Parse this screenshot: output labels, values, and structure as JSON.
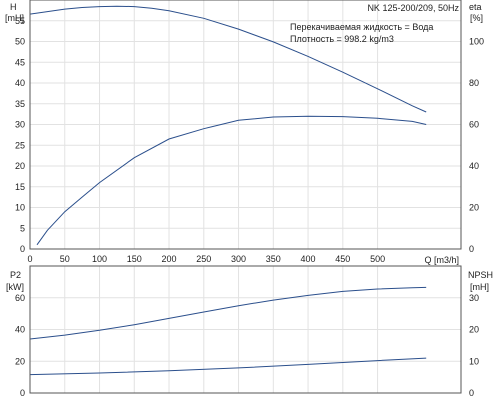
{
  "chart_data": [
    {
      "type": "line",
      "panel": "top",
      "title": "NK 125-200/209, 50Hz",
      "annotations": [
        "Перекачиваемая жидкость = Вода",
        "Плотность = 998.2 kg/m3"
      ],
      "xlabel": "Q [m3/h]",
      "x_ticks": [
        "0",
        "50",
        "100",
        "150",
        "200",
        "250",
        "300",
        "350",
        "400",
        "450",
        "500"
      ],
      "xlim": [
        0,
        620
      ],
      "ylabel_left": [
        "H",
        "[mH]"
      ],
      "ylim_left": [
        0,
        60
      ],
      "y_ticks_left": [
        "0",
        "5",
        "10",
        "15",
        "20",
        "25",
        "30",
        "35",
        "40",
        "45",
        "50",
        "55"
      ],
      "ylabel_right": [
        "eta",
        "[%]"
      ],
      "ylim_right": [
        0,
        120
      ],
      "y_ticks_right": [
        "0",
        "20",
        "40",
        "60",
        "80",
        "100"
      ],
      "grid": true,
      "series": [
        {
          "axis": "left",
          "color": "#2b4f8c",
          "x": [
            0,
            25,
            50,
            75,
            100,
            125,
            150,
            175,
            200,
            250,
            300,
            350,
            400,
            450,
            500,
            550,
            570
          ],
          "y": [
            56.6,
            57.2,
            57.8,
            58.2,
            58.4,
            58.5,
            58.4,
            58.0,
            57.4,
            55.6,
            53.0,
            49.9,
            46.4,
            42.6,
            38.6,
            34.5,
            33.0
          ]
        },
        {
          "axis": "right",
          "color": "#2b4f8c",
          "x": [
            10,
            25,
            50,
            75,
            100,
            150,
            200,
            250,
            300,
            350,
            400,
            450,
            500,
            550,
            570
          ],
          "y": [
            2,
            9,
            18,
            25,
            32,
            44,
            53,
            58,
            62,
            63.6,
            64,
            63.8,
            63,
            61.5,
            60
          ]
        }
      ]
    },
    {
      "type": "line",
      "panel": "bottom",
      "xlim": [
        0,
        620
      ],
      "ylabel_left": [
        "P2",
        "[kW]"
      ],
      "ylim_left": [
        0,
        80
      ],
      "y_ticks_left": [
        "0",
        "20",
        "40",
        "60"
      ],
      "ylabel_right": [
        "NPSH",
        "[mH]"
      ],
      "ylim_right": [
        0,
        40
      ],
      "y_ticks_right": [
        "0",
        "10",
        "20",
        "30"
      ],
      "grid": true,
      "series": [
        {
          "axis": "left",
          "color": "#2b4f8c",
          "x": [
            0,
            50,
            100,
            150,
            200,
            250,
            300,
            350,
            400,
            450,
            500,
            550,
            570
          ],
          "y": [
            34,
            36.5,
            39.5,
            43,
            47,
            51,
            55,
            58.5,
            61.5,
            64,
            65.5,
            66.3,
            66.5
          ]
        },
        {
          "axis": "right",
          "color": "#2b4f8c",
          "x": [
            0,
            100,
            200,
            300,
            400,
            500,
            570
          ],
          "y": [
            5.8,
            6.3,
            7,
            7.9,
            9,
            10.2,
            11
          ]
        }
      ]
    }
  ]
}
